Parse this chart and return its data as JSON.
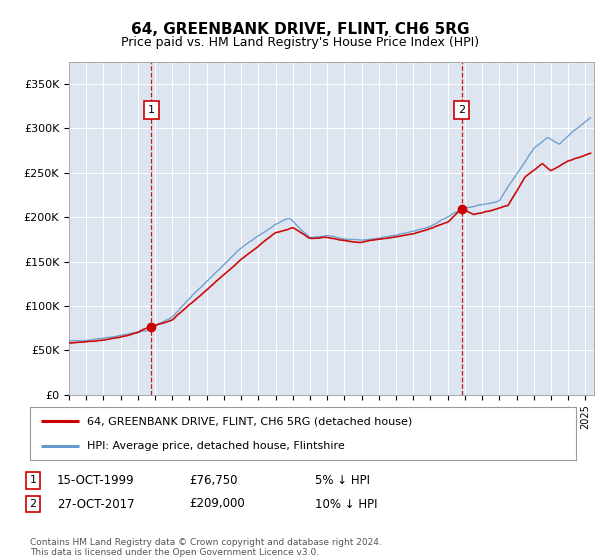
{
  "title": "64, GREENBANK DRIVE, FLINT, CH6 5RG",
  "subtitle": "Price paid vs. HM Land Registry's House Price Index (HPI)",
  "plot_bg_color": "#dde6f0",
  "ylabel_ticks": [
    "£0",
    "£50K",
    "£100K",
    "£150K",
    "£200K",
    "£250K",
    "£300K",
    "£350K"
  ],
  "ytick_values": [
    0,
    50000,
    100000,
    150000,
    200000,
    250000,
    300000,
    350000
  ],
  "ylim": [
    0,
    375000
  ],
  "xlim_start": 1995.0,
  "xlim_end": 2025.5,
  "transaction1": {
    "date_num": 1999.79,
    "price": 76750,
    "label": "1"
  },
  "transaction2": {
    "date_num": 2017.82,
    "price": 209000,
    "label": "2"
  },
  "legend_line1": "64, GREENBANK DRIVE, FLINT, CH6 5RG (detached house)",
  "legend_line2": "HPI: Average price, detached house, Flintshire",
  "table_rows": [
    {
      "num": "1",
      "date": "15-OCT-1999",
      "price": "£76,750",
      "note": "5% ↓ HPI"
    },
    {
      "num": "2",
      "date": "27-OCT-2017",
      "price": "£209,000",
      "note": "10% ↓ HPI"
    }
  ],
  "footer": "Contains HM Land Registry data © Crown copyright and database right 2024.\nThis data is licensed under the Open Government Licence v3.0.",
  "hpi_color": "#6699cc",
  "price_color": "#cc0000",
  "vline_color": "#cc0000",
  "marker_color": "#cc0000",
  "hpi_anchors_x": [
    1995.0,
    1996.5,
    1998.0,
    1999.5,
    2001.0,
    2003.0,
    2005.0,
    2007.0,
    2007.8,
    2009.0,
    2010.0,
    2011.0,
    2012.0,
    2013.0,
    2014.0,
    2015.0,
    2016.0,
    2017.0,
    2018.0,
    2019.0,
    2020.0,
    2021.0,
    2022.0,
    2022.8,
    2023.5,
    2024.2,
    2025.3
  ],
  "hpi_anchors_y": [
    60000,
    63000,
    67000,
    72000,
    88000,
    128000,
    165000,
    192000,
    198000,
    177000,
    179000,
    176000,
    174000,
    176000,
    179000,
    184000,
    190000,
    200000,
    210000,
    214000,
    218000,
    248000,
    278000,
    290000,
    282000,
    295000,
    312000
  ],
  "price_anchors_x": [
    1995.0,
    1996.5,
    1998.0,
    1999.0,
    1999.79,
    2001.0,
    2003.0,
    2005.0,
    2007.0,
    2008.0,
    2009.0,
    2010.0,
    2011.0,
    2012.0,
    2013.0,
    2014.0,
    2015.0,
    2016.0,
    2017.0,
    2017.82,
    2018.5,
    2019.5,
    2020.5,
    2021.5,
    2022.5,
    2023.0,
    2024.0,
    2025.3
  ],
  "price_anchors_y": [
    58000,
    61000,
    65000,
    70000,
    76750,
    84000,
    118000,
    152000,
    183000,
    188000,
    176000,
    177000,
    174000,
    172000,
    175000,
    177000,
    181000,
    187000,
    194000,
    209000,
    203000,
    207000,
    213000,
    245000,
    260000,
    252000,
    263000,
    272000
  ]
}
